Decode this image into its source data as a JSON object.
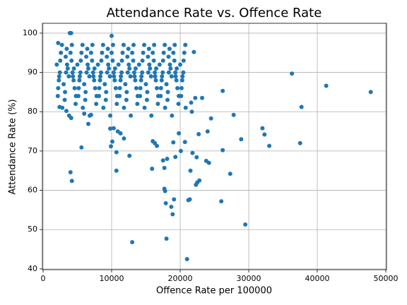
{
  "chart_data": {
    "type": "scatter",
    "title": "Attendance Rate vs. Offence Rate",
    "xlabel": "Offence Rate per 100000",
    "ylabel": "Attendance Rate (%)",
    "xlim": [
      -100,
      50100
    ],
    "ylim": [
      39.8,
      102.5
    ],
    "xticks": [
      0,
      10000,
      20000,
      30000,
      40000,
      50000
    ],
    "yticks": [
      40,
      50,
      60,
      70,
      80,
      90,
      100
    ],
    "grid": true,
    "series": [
      {
        "name": "Attendance Rate (%)",
        "color": "#1f77b4",
        "x": [
          2000,
          2300,
          2600,
          2150,
          2450,
          2750,
          2200,
          2500,
          2800,
          2350,
          3000,
          3300,
          3600,
          3150,
          3450,
          3750,
          3200,
          3500,
          3800,
          3350,
          4000,
          4300,
          4600,
          4150,
          4450,
          4750,
          4200,
          4500,
          4800,
          4350,
          5000,
          5300,
          5600,
          5150,
          5450,
          5750,
          5200,
          5500,
          5800,
          5350,
          6000,
          6300,
          6600,
          6150,
          6450,
          6750,
          6200,
          6500,
          6800,
          6350,
          7000,
          7300,
          7600,
          7150,
          7450,
          7750,
          7200,
          7500,
          7800,
          7350,
          8000,
          8300,
          8600,
          8150,
          8450,
          8750,
          8200,
          8500,
          8800,
          8350,
          9000,
          9300,
          9600,
          9150,
          9450,
          9750,
          9200,
          9500,
          9800,
          9350,
          10000,
          10300,
          10600,
          10150,
          10450,
          10750,
          10200,
          10500,
          10800,
          10350,
          11000,
          11300,
          11600,
          11150,
          11450,
          11750,
          11200,
          11500,
          11800,
          11350,
          12000,
          12300,
          12600,
          12150,
          12450,
          12750,
          12200,
          12500,
          12800,
          12350,
          13000,
          13300,
          13600,
          13150,
          13450,
          13750,
          13200,
          13500,
          13800,
          13350,
          14000,
          14300,
          14600,
          14150,
          14450,
          14750,
          14200,
          14500,
          14800,
          14350,
          15000,
          15300,
          15600,
          15150,
          15450,
          15750,
          15200,
          15500,
          15800,
          15350,
          16000,
          16300,
          16600,
          16150,
          16450,
          16750,
          16200,
          16500,
          16800,
          16350,
          17000,
          17300,
          17600,
          17150,
          17450,
          17750,
          17200,
          17500,
          17800,
          17350,
          18000,
          18300,
          18600,
          18150,
          18450,
          18750,
          18200,
          18500,
          18800,
          18350,
          19000,
          19300,
          19600,
          19150,
          19450,
          19750,
          19200,
          19500,
          19800,
          19350,
          20000,
          20300,
          20600,
          20150,
          20450,
          20750,
          20200,
          20500,
          20800,
          20350,
          36300,
          41300,
          47800,
          37700,
          37500,
          32000,
          32300,
          33000,
          29500,
          28900,
          27800,
          27300,
          26200,
          26200,
          26000,
          24500,
          24200,
          23800,
          24000,
          23200,
          22700,
          22400,
          22800,
          22500,
          22300,
          21800,
          21400,
          21200,
          21000,
          21500,
          20700,
          20100,
          19800,
          19000,
          19300,
          19100,
          18900,
          18700,
          18100,
          17900,
          17800,
          17700,
          17500,
          17700,
          18000,
          16300,
          16000,
          15900,
          16600,
          13000,
          12600,
          11800,
          11300,
          10700,
          10700,
          10300,
          10100,
          9900,
          9800,
          10900,
          5600,
          4000,
          4200,
          4100,
          6600,
          2400,
          3400,
          2200,
          3900,
          4100,
          10000,
          21600,
          22200,
          21700,
          22000,
          6000,
          7000
        ],
        "values": [
          92,
          88,
          95,
          84,
          90,
          97,
          86,
          93,
          81,
          89,
          87,
          94,
          91,
          83,
          96,
          89,
          85,
          92,
          79,
          90,
          95,
          90,
          86,
          93,
          88,
          82,
          97,
          91,
          84,
          89,
          92,
          88,
          95,
          84,
          90,
          97,
          86,
          93,
          81,
          89,
          87,
          94,
          91,
          83,
          96,
          89,
          85,
          92,
          79,
          90,
          95,
          90,
          86,
          93,
          88,
          82,
          97,
          91,
          84,
          89,
          92,
          88,
          95,
          84,
          90,
          97,
          86,
          93,
          81,
          89,
          87,
          94,
          91,
          83,
          96,
          89,
          85,
          92,
          79,
          90,
          95,
          90,
          86,
          93,
          88,
          82,
          97,
          91,
          84,
          89,
          92,
          88,
          95,
          84,
          90,
          97,
          86,
          93,
          81,
          89,
          87,
          94,
          91,
          83,
          96,
          89,
          85,
          92,
          79,
          90,
          95,
          90,
          86,
          93,
          88,
          82,
          97,
          91,
          84,
          89,
          92,
          88,
          95,
          84,
          90,
          97,
          86,
          93,
          81,
          89,
          87,
          94,
          91,
          83,
          96,
          89,
          85,
          92,
          79,
          90,
          95,
          90,
          86,
          93,
          88,
          82,
          97,
          91,
          84,
          89,
          92,
          88,
          95,
          84,
          90,
          97,
          86,
          93,
          81,
          89,
          87,
          94,
          91,
          83,
          96,
          89,
          85,
          92,
          79,
          90,
          95,
          90,
          86,
          93,
          88,
          82,
          97,
          91,
          84,
          89,
          92,
          88,
          95,
          84,
          90,
          97,
          86,
          93,
          81,
          89,
          89.7,
          86.6,
          85,
          81.2,
          72,
          75.8,
          74.2,
          71.3,
          51.3,
          73,
          79.2,
          64.2,
          85.3,
          70.2,
          57.2,
          78.3,
          67,
          67.5,
          75,
          83.5,
          74.3,
          68.4,
          62.5,
          62,
          61.4,
          69.5,
          57.7,
          57.5,
          42.5,
          65,
          72.3,
          70,
          74.5,
          72.2,
          68.5,
          57.7,
          53.9,
          55.8,
          68,
          56.7,
          59.8,
          60.4,
          67.6,
          65.7,
          47.7,
          72,
          72.5,
          65.5,
          71.3,
          46.8,
          68.8,
          73.2,
          74.5,
          69.7,
          65,
          75.8,
          72.4,
          71.2,
          75.7,
          75,
          70.9,
          64.6,
          62.4,
          78.4,
          76.9,
          81.2,
          80.2,
          97.5,
          100,
          100,
          99.3,
          82.3,
          83.5,
          80,
          95.2,
          79.5,
          79.2
        ]
      }
    ]
  }
}
